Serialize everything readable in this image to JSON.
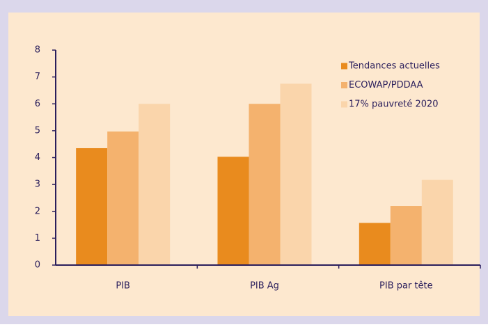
{
  "chart_data": {
    "type": "bar",
    "categories": [
      "PIB",
      "PIB Ag",
      "PIB par tête"
    ],
    "series": [
      {
        "name": "Tendances actuelles",
        "color": "#e98b1e",
        "values": [
          4.35,
          4.03,
          1.57
        ]
      },
      {
        "name": "ECOWAP/PDDAA",
        "color": "#f4b26e",
        "values": [
          4.97,
          6.0,
          2.2
        ]
      },
      {
        "name": "17% pauvreté 2020",
        "color": "#fad5ab",
        "values": [
          6.0,
          6.75,
          3.17
        ]
      }
    ],
    "ylim": [
      0,
      8
    ],
    "yticks": [
      0,
      1,
      2,
      3,
      4,
      5,
      6,
      7,
      8
    ],
    "grid": false,
    "legend": "top-right"
  }
}
